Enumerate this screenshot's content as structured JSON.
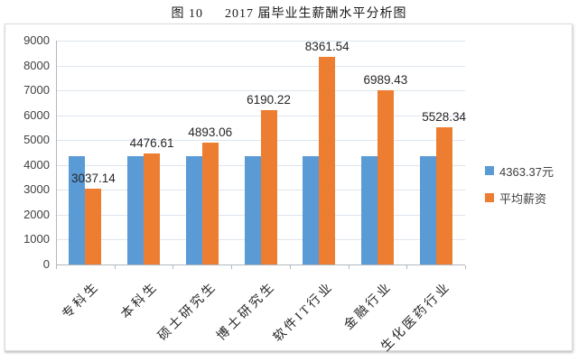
{
  "title": {
    "figure_label": "图 10",
    "text": "2017 届毕业生薪酬水平分析图"
  },
  "chart_data": {
    "type": "bar",
    "title": "图 10 2017 届毕业生薪酬水平分析图",
    "categories": [
      "专科生",
      "本科生",
      "硕士研究生",
      "博士研究生",
      "软件IT行业",
      "金融行业",
      "生化医药行业"
    ],
    "series": [
      {
        "name": "4363.37元",
        "color": "#5B9BD5",
        "values": [
          4363.37,
          4363.37,
          4363.37,
          4363.37,
          4363.37,
          4363.37,
          4363.37
        ],
        "show_data_labels": false
      },
      {
        "name": "平均薪资",
        "color": "#ED7D31",
        "values": [
          3037.14,
          4476.61,
          4893.06,
          6190.22,
          8361.54,
          6989.43,
          5528.34
        ],
        "value_labels": [
          "3037.14",
          "4476.61",
          "4893.06",
          "6190.22",
          "8361.54",
          "6989.43",
          "5528.34"
        ],
        "show_data_labels": true
      }
    ],
    "ylim": [
      0,
      9000
    ],
    "ytick_step": 1000,
    "ytick_labels": [
      "0",
      "1000",
      "2000",
      "3000",
      "4000",
      "5000",
      "6000",
      "7000",
      "8000",
      "9000"
    ],
    "grid": "horizontal",
    "legend_position": "right",
    "xlabel": "",
    "ylabel": ""
  },
  "colors": {
    "gridline": "#dde5ed",
    "axis": "#b0b8c1",
    "series_blue": "#5B9BD5",
    "series_orange": "#ED7D31"
  }
}
